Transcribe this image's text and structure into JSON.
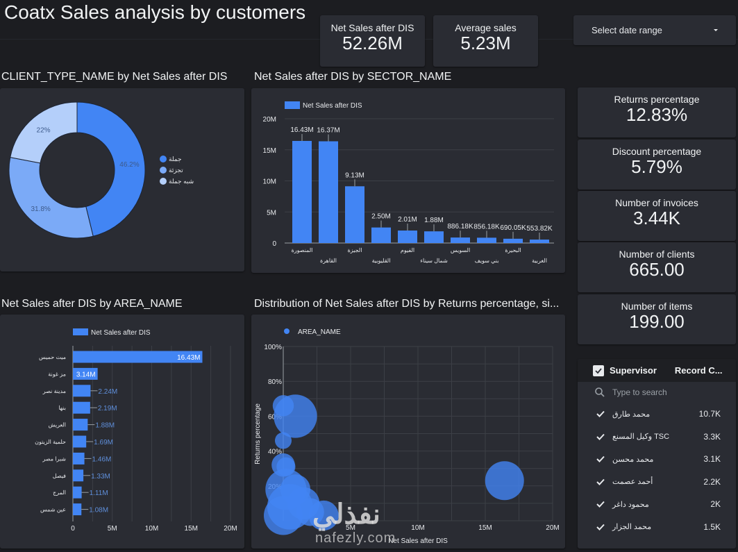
{
  "title": "Coatx Sales analysis by customers",
  "kpis": [
    {
      "label": "Net Sales after DIS",
      "value": "52.26M"
    },
    {
      "label": "Average sales",
      "value": "5.23M"
    }
  ],
  "date_range": {
    "label": "Select date range",
    "icon": "caret-down-icon"
  },
  "side_kpis": [
    {
      "label": "Returns percentage",
      "value": "12.83%"
    },
    {
      "label": "Discount percentage",
      "value": "5.79%"
    },
    {
      "label": "Number of invoices",
      "value": "3.44K"
    },
    {
      "label": "Number of clients",
      "value": "665.00"
    },
    {
      "label": "Number of items",
      "value": "199.00"
    }
  ],
  "filter": {
    "header_label": "Supervisor",
    "count_header": "Record C...",
    "search_placeholder": "Type to search",
    "items": [
      {
        "name": "محمد طارق",
        "count": "10.7K",
        "checked": true
      },
      {
        "name": "TSC وكيل المسنع",
        "count": "3.3K",
        "checked": true
      },
      {
        "name": "محمد محسن",
        "count": "3.1K",
        "checked": true
      },
      {
        "name": "أحمد عصمت",
        "count": "2.2K",
        "checked": true
      },
      {
        "name": "محمود داغر",
        "count": "2K",
        "checked": true
      },
      {
        "name": "محمد الجزار",
        "count": "1.5K",
        "checked": true
      }
    ]
  },
  "watermark": {
    "arabic": "نفذلي",
    "latin": "nafezly.com"
  },
  "colors": {
    "primary": "#4285f4",
    "mid": "#7baaf7",
    "light": "#b4cffa",
    "bg": "#1c1d21",
    "card": "#2a2c33"
  },
  "chart_data": [
    {
      "type": "pie",
      "title": "CLIENT_TYPE_NAME by Net Sales after DIS",
      "donut": true,
      "labels": [
        "جملة",
        "تجزئة",
        "شبه جملة"
      ],
      "values": [
        46.2,
        31.8,
        22.0
      ],
      "value_labels": [
        "46.2%",
        "31.8%",
        "22%"
      ],
      "legend": "right"
    },
    {
      "type": "bar",
      "title": "Net Sales after DIS by SECTOR_NAME",
      "legend": "top-left",
      "series_name": "Net Sales after DIS",
      "categories": [
        "المنصورة",
        "القاهرة",
        "الجيزة",
        "القليوبية",
        "الفيوم",
        "شمال سيناء",
        "السويس",
        "بني سويف",
        "البحيرة",
        "الغربية"
      ],
      "values": [
        16430000,
        16370000,
        9130000,
        2500000,
        2010000,
        1880000,
        886180,
        856180,
        690050,
        553820
      ],
      "value_labels": [
        "16.43M",
        "16.37M",
        "9.13M",
        "2.50M",
        "2.01M",
        "1.88M",
        "886.18K",
        "856.18K",
        "690.05K",
        "553.82K"
      ],
      "ylim": [
        0,
        20000000
      ],
      "yticks": [
        "0",
        "5M",
        "10M",
        "15M",
        "20M"
      ],
      "grid": true
    },
    {
      "type": "bar",
      "orientation": "horizontal",
      "title": "Net Sales after DIS by AREA_NAME",
      "legend": "top",
      "series_name": "Net Sales after DIS",
      "categories": [
        "ميت حميس",
        "مز غونة",
        "مدينة نصر",
        "بنها",
        "العريش",
        "حلمية الزيتون",
        "شبرا مصر",
        "فيصل",
        "المرج",
        "عين شمس"
      ],
      "values": [
        16430000,
        3140000,
        2240000,
        2190000,
        1880000,
        1690000,
        1460000,
        1330000,
        1110000,
        1080000
      ],
      "value_labels": [
        "16.43M",
        "3.14M",
        "2.24M",
        "2.19M",
        "1.88M",
        "1.69M",
        "1.46M",
        "1.33M",
        "1.11M",
        "1.08M"
      ],
      "xlim": [
        0,
        20000000
      ],
      "xticks": [
        "0",
        "5M",
        "10M",
        "15M",
        "20M"
      ],
      "grid": true
    },
    {
      "type": "scatter",
      "title": "Distribution of Net Sales after DIS by Returns percentage, si...",
      "legend": "top-left",
      "series_name": "AREA_NAME",
      "xlabel": "Net Sales after DIS",
      "ylabel": "Returns percentage",
      "xlim": [
        0,
        20000000
      ],
      "ylim": [
        0,
        100
      ],
      "xticks": [
        "5M",
        "10M",
        "15M",
        "20M"
      ],
      "yticks": [
        "20%",
        "40%",
        "60%",
        "80%",
        "100%"
      ],
      "points": [
        {
          "x": 16430000,
          "y": 23,
          "size": 0.75
        },
        {
          "x": 900000,
          "y": 60,
          "size": 0.85
        },
        {
          "x": 0,
          "y": 66,
          "size": 0.35
        },
        {
          "x": 0,
          "y": 46,
          "size": 0.25
        },
        {
          "x": 0,
          "y": 32,
          "size": 0.4
        },
        {
          "x": 200000,
          "y": 31,
          "size": 0.3
        },
        {
          "x": 200000,
          "y": 18,
          "size": 0.8
        },
        {
          "x": 900000,
          "y": 18,
          "size": 0.55
        },
        {
          "x": 0,
          "y": 3,
          "size": 0.75
        },
        {
          "x": 2000000,
          "y": 5,
          "size": 0.5
        },
        {
          "x": 3000000,
          "y": 3,
          "size": 0.55
        },
        {
          "x": 500000,
          "y": 8,
          "size": 0.9
        },
        {
          "x": 1500000,
          "y": 10,
          "size": 0.6
        }
      ],
      "grid": true
    }
  ]
}
